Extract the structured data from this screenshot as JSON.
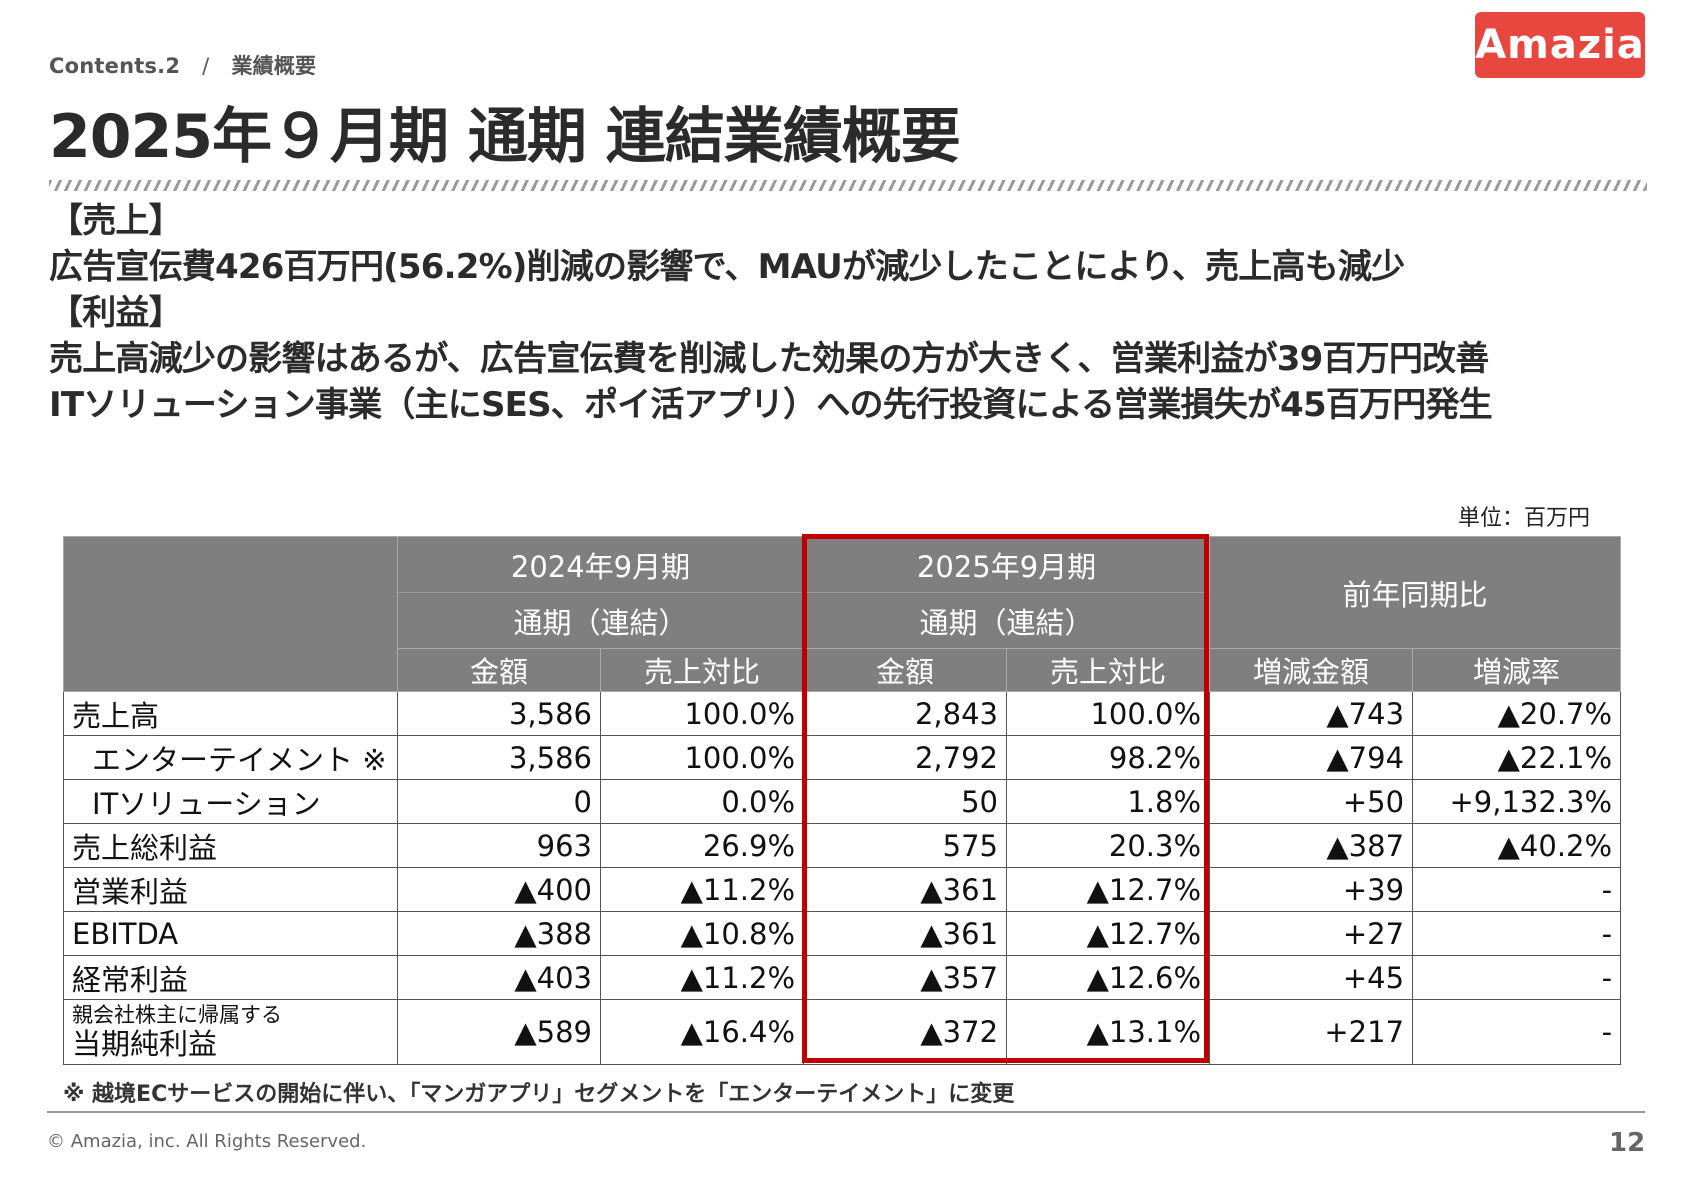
{
  "header": {
    "breadcrumb_section": "Contents.2",
    "breadcrumb_separator": "/",
    "breadcrumb_page": "業績概要",
    "logo_text": "Amazia",
    "title": "2025年９月期 通期 連結業績概要"
  },
  "summary": {
    "sales_heading": "【売上】",
    "sales_text": "広告宣伝費426百万円(56.2%)削減の影響で、MAUが減少したことにより、売上高も減少",
    "profit_heading": "【利益】",
    "profit_text_1": "売上高減少の影響はあるが、広告宣伝費を削減した効果の方が大きく、営業利益が39百万円改善",
    "profit_text_2": "ITソリューション事業（主にSES、ポイ活アプリ）への先行投資による営業損失が45百万円発生"
  },
  "table": {
    "unit": "単位：百万円",
    "headers": {
      "prev_period": "2024年9月期",
      "prev_period_sub": "通期（連結）",
      "curr_period": "2025年9月期",
      "curr_period_sub": "通期（連結）",
      "yoy": "前年同期比",
      "amount": "金額",
      "ratio": "売上対比",
      "change_amount": "増減金額",
      "change_rate": "増減率"
    },
    "rows": [
      {
        "label": "売上高",
        "prev_amount": "3,586",
        "prev_ratio": "100.0%",
        "curr_amount": "2,843",
        "curr_ratio": "100.0%",
        "change_amount": "▲743",
        "change_rate": "▲20.7%"
      },
      {
        "label": "エンターテイメント ※",
        "prev_amount": "3,586",
        "prev_ratio": "100.0%",
        "curr_amount": "2,792",
        "curr_ratio": "98.2%",
        "change_amount": "▲794",
        "change_rate": "▲22.1%"
      },
      {
        "label": "ITソリューション",
        "prev_amount": "0",
        "prev_ratio": "0.0%",
        "curr_amount": "50",
        "curr_ratio": "1.8%",
        "change_amount": "+50",
        "change_rate": "+9,132.3%"
      },
      {
        "label": "売上総利益",
        "prev_amount": "963",
        "prev_ratio": "26.9%",
        "curr_amount": "575",
        "curr_ratio": "20.3%",
        "change_amount": "▲387",
        "change_rate": "▲40.2%"
      },
      {
        "label": "営業利益",
        "prev_amount": "▲400",
        "prev_ratio": "▲11.2%",
        "curr_amount": "▲361",
        "curr_ratio": "▲12.7%",
        "change_amount": "+39",
        "change_rate": "-"
      },
      {
        "label": "EBITDA",
        "prev_amount": "▲388",
        "prev_ratio": "▲10.8%",
        "curr_amount": "▲361",
        "curr_ratio": "▲12.7%",
        "change_amount": "+27",
        "change_rate": "-"
      },
      {
        "label": "経常利益",
        "prev_amount": "▲403",
        "prev_ratio": "▲11.2%",
        "curr_amount": "▲357",
        "curr_ratio": "▲12.6%",
        "change_amount": "+45",
        "change_rate": "-"
      },
      {
        "label_small": "親会社株主に帰属する",
        "label": "当期純利益",
        "prev_amount": "▲589",
        "prev_ratio": "▲16.4%",
        "curr_amount": "▲372",
        "curr_ratio": "▲13.1%",
        "change_amount": "+217",
        "change_rate": "-"
      }
    ]
  },
  "note": "※ 越境ECサービスの開始に伴い、「マンガアプリ」セグメントを「エンターテイメント」に変更",
  "footer": {
    "copyright": "© Amazia, inc. All Rights Reserved.",
    "page_number": "12"
  },
  "colors": {
    "logo_bg": "#e8473f",
    "header_cell_bg": "#7f7f7f",
    "highlight_border": "#c00000"
  }
}
